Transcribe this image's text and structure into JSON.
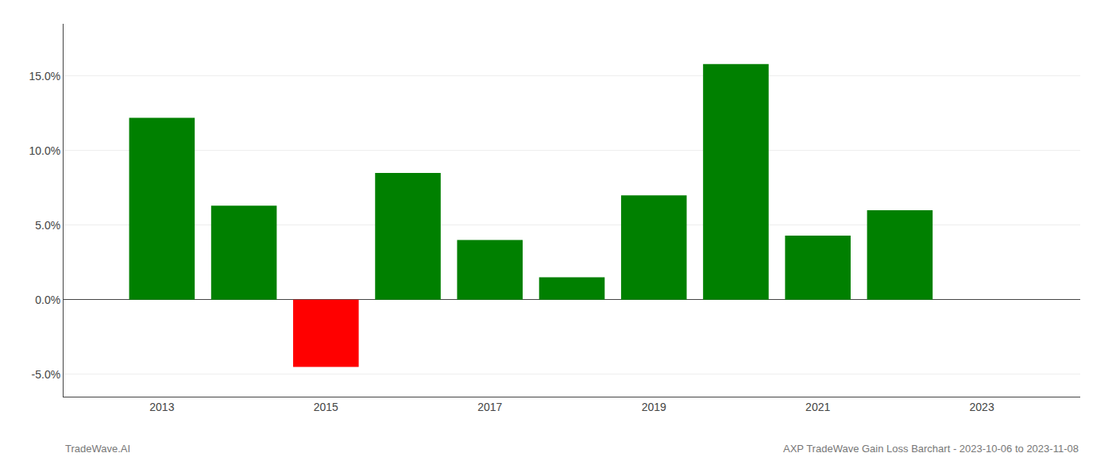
{
  "chart_data": {
    "type": "bar",
    "title": "AXP TradeWave Gain Loss Barchart - 2023-10-06 to 2023-11-08",
    "annotations": [
      "TradeWave.AI"
    ],
    "x": [
      2013,
      2014,
      2015,
      2016,
      2017,
      2018,
      2019,
      2020,
      2021,
      2022
    ],
    "values": [
      0.122,
      0.063,
      -0.045,
      0.085,
      0.04,
      0.015,
      0.07,
      0.158,
      0.043,
      0.06
    ],
    "colors": [
      "#008000",
      "#008000",
      "#ff0000",
      "#008000",
      "#008000",
      "#008000",
      "#008000",
      "#008000",
      "#008000",
      "#008000"
    ],
    "xlim": [
      2011.8,
      2024.2
    ],
    "xticks": [
      2013,
      2015,
      2017,
      2019,
      2021,
      2023
    ],
    "ylim": [
      -0.065,
      0.185
    ],
    "yticks": [
      {
        "value": -0.05,
        "label": "-5.0%"
      },
      {
        "value": 0.0,
        "label": "0.0%"
      },
      {
        "value": 0.05,
        "label": "5.0%"
      },
      {
        "value": 0.1,
        "label": "10.0%"
      },
      {
        "value": 0.15,
        "label": "15.0%"
      }
    ],
    "grid": true
  }
}
